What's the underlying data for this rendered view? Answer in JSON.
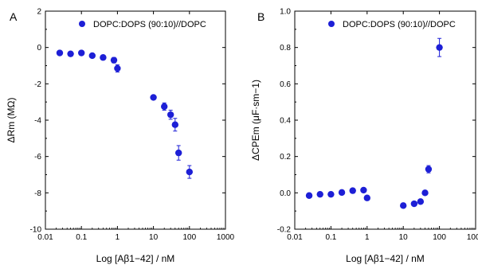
{
  "chart_data": [
    {
      "panel_label": "A",
      "type": "scatter",
      "xscale": "log",
      "xlim": [
        0.01,
        1000
      ],
      "ylim": [
        -10,
        2
      ],
      "xticks": [
        0.01,
        0.1,
        1,
        10,
        100,
        1000
      ],
      "xtick_labels": [
        "0.01",
        "0.1",
        "1",
        "10",
        "100",
        "1000"
      ],
      "yticks": [
        -10,
        -8,
        -6,
        -4,
        -2,
        0,
        2
      ],
      "ytick_labels": [
        "-10",
        "-8",
        "-6",
        "-4",
        "-2",
        "0",
        "2"
      ],
      "xlabel": "Log [Aβ1−42] / nM",
      "ylabel": "ΔRm (MΩ)",
      "legend_position": "top-right",
      "series": [
        {
          "name": "DOPC:DOPS (90:10)//DOPC",
          "color": "#1d1fd6",
          "x": [
            0.025,
            0.05,
            0.1,
            0.2,
            0.4,
            0.8,
            1,
            10,
            20,
            30,
            40,
            50,
            100
          ],
          "y": [
            -0.3,
            -0.35,
            -0.3,
            -0.45,
            -0.55,
            -0.7,
            -1.15,
            -2.75,
            -3.25,
            -3.7,
            -4.25,
            -5.8,
            -6.85
          ],
          "err": [
            0,
            0,
            0,
            0,
            0,
            0.15,
            0.2,
            0,
            0.2,
            0.25,
            0.35,
            0.4,
            0.35
          ]
        }
      ]
    },
    {
      "panel_label": "B",
      "type": "scatter",
      "xscale": "log",
      "xlim": [
        0.01,
        1000
      ],
      "ylim": [
        -0.2,
        1.0
      ],
      "xticks": [
        0.01,
        0.1,
        1,
        10,
        100,
        1000
      ],
      "xtick_labels": [
        "0.01",
        "0.1",
        "1",
        "10",
        "100",
        "1000"
      ],
      "yticks": [
        -0.2,
        0.0,
        0.2,
        0.4,
        0.6,
        0.8,
        1.0
      ],
      "ytick_labels": [
        "-0.2",
        "0.0",
        "0.2",
        "0.4",
        "0.6",
        "0.8",
        "1.0"
      ],
      "xlabel": "Log [Aβ1−42] / nM",
      "ylabel": "ΔCPEm (μF·sm−1)",
      "legend_position": "top-right",
      "series": [
        {
          "name": "DOPC:DOPS (90:10)//DOPC",
          "color": "#1d1fd6",
          "x": [
            0.025,
            0.05,
            0.1,
            0.2,
            0.4,
            0.8,
            1,
            10,
            20,
            30,
            40,
            50,
            100
          ],
          "y": [
            -0.015,
            -0.008,
            -0.008,
            0.002,
            0.012,
            0.015,
            -0.028,
            -0.07,
            -0.06,
            -0.048,
            0.0,
            0.13,
            0.8
          ],
          "err": [
            0,
            0,
            0,
            0,
            0,
            0,
            0.01,
            0,
            0,
            0,
            0,
            0.02,
            0.05
          ]
        }
      ]
    }
  ]
}
